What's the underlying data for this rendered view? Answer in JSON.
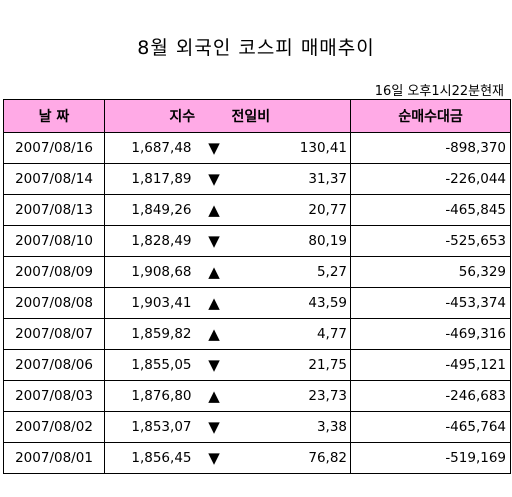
{
  "title": "8월 외국인 코스피 매매추이",
  "timestamp": "16일 오후1시22분현재",
  "headers": {
    "date": "날 짜",
    "index": "지수",
    "change": "전일비",
    "net": "순매수대금"
  },
  "rows": [
    {
      "date": "2007/08/16",
      "index": "1,687,48",
      "arrow": "▼",
      "change": "130,41",
      "net": "-898,370"
    },
    {
      "date": "2007/08/14",
      "index": "1,817,89",
      "arrow": "▼",
      "change": "31,37",
      "net": "-226,044"
    },
    {
      "date": "2007/08/13",
      "index": "1,849,26",
      "arrow": "▲",
      "change": "20,77",
      "net": "-465,845"
    },
    {
      "date": "2007/08/10",
      "index": "1,828,49",
      "arrow": "▼",
      "change": "80,19",
      "net": "-525,653"
    },
    {
      "date": "2007/08/09",
      "index": "1,908,68",
      "arrow": "▲",
      "change": "5,27",
      "net": "56,329"
    },
    {
      "date": "2007/08/08",
      "index": "1,903,41",
      "arrow": "▲",
      "change": "43,59",
      "net": "-453,374"
    },
    {
      "date": "2007/08/07",
      "index": "1,859,82",
      "arrow": "▲",
      "change": "4,77",
      "net": "-469,316"
    },
    {
      "date": "2007/08/06",
      "index": "1,855,05",
      "arrow": "▼",
      "change": "21,75",
      "net": "-495,121"
    },
    {
      "date": "2007/08/03",
      "index": "1,876,80",
      "arrow": "▲",
      "change": "23,73",
      "net": "-246,683"
    },
    {
      "date": "2007/08/02",
      "index": "1,853,07",
      "arrow": "▼",
      "change": "3,38",
      "net": "-465,764"
    },
    {
      "date": "2007/08/01",
      "index": "1,856,45",
      "arrow": "▼",
      "change": "76,82",
      "net": "-519,169"
    }
  ]
}
